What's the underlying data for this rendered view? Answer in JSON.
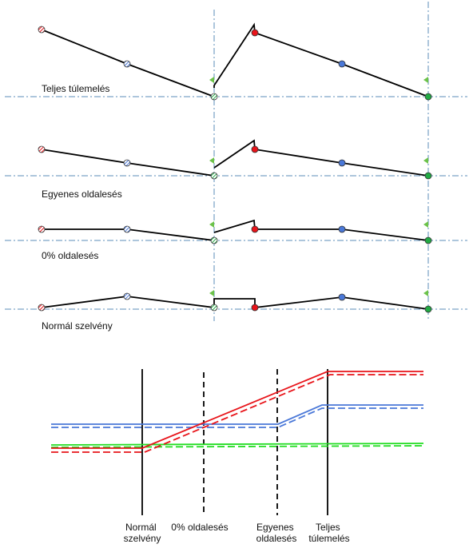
{
  "rows": [
    {
      "label": "Teljes túlemelés"
    },
    {
      "label": "Egyenes oldalesés"
    },
    {
      "label": "0% oldalesés"
    },
    {
      "label": "Normál szelvény"
    }
  ],
  "section_labels": [
    {
      "lines": [
        "Normál",
        "szelvény"
      ]
    },
    {
      "lines": [
        "0% oldalesés"
      ]
    },
    {
      "lines": [
        "Egyenes",
        "oldalesés"
      ]
    },
    {
      "lines": [
        "Teljes",
        "túlemelés"
      ]
    }
  ],
  "colors": {
    "red": "#e8141a",
    "blue": "#4a78d8",
    "green": "#22dd22",
    "axis": "#5b8db8",
    "flag": "#6cc24a",
    "line": "#000000"
  },
  "icons": {
    "hatched_point": "hatched-circle-icon",
    "solid_point": "solid-circle-icon",
    "flag": "green-flag-icon"
  }
}
